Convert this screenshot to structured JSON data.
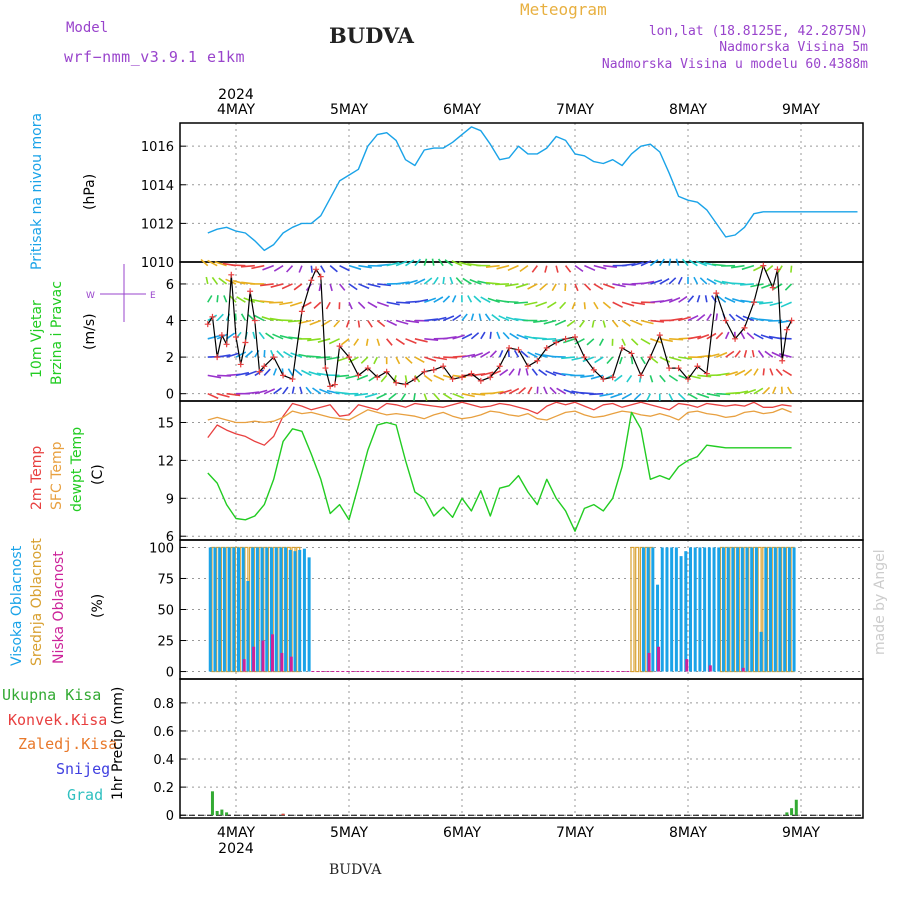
{
  "header": {
    "model_label": "Model",
    "model_name": "wrf−nmm_v3.9.1  e1km",
    "title": "BUDVA",
    "meteogram": "Meteogram",
    "lonlat": "lon,lat (18.8125E, 42.2875N)",
    "elevation": "Nadmorska Visina 5m",
    "model_elevation": "Nadmorska Visina u modelu 60.4388m",
    "footer_title": "BUDVA",
    "credit": "made by Angel"
  },
  "colors": {
    "pressure": "#1aa3e8",
    "temp": "#e84040",
    "sfc": "#e8a040",
    "dewpt": "#22cc22",
    "high": "#1aa3e8",
    "mid": "#d8a030",
    "low": "#cc2299",
    "total": "#33aa33",
    "conv": "#e84040",
    "frz": "#e8782a",
    "snow": "#4040e0",
    "hail": "#30c0c0",
    "title": "#222222",
    "purple": "#9944cc",
    "orange": "#e8b040"
  },
  "time_axis": {
    "year": "2024",
    "days": [
      "4MAY",
      "5MAY",
      "6MAY",
      "7MAY",
      "8MAY",
      "9MAY"
    ]
  },
  "panels": {
    "pressure": {
      "label": "Pritisak na nivou mora",
      "unit": "(hPa)"
    },
    "wind": {
      "label1": "10m Vjetar",
      "label2": "Brzina i Pravac",
      "unit": "(m/s)"
    },
    "temp": {
      "label1": "2m Temp",
      "label2": "SFC Temp",
      "label3": "dewpt Temp",
      "unit": "(C)"
    },
    "cloud": {
      "label1": "Visoka Oblacnost",
      "label2": "Srednja Oblacnost",
      "label3": "Niska Oblacnost",
      "unit": "(%)"
    },
    "precip": {
      "items": [
        "Ukupna Kisa",
        "Konvek.Kisa",
        "Zaledj.Kisa",
        "Snijeg",
        "Grad"
      ],
      "unit": "1hr Precip (mm)"
    }
  },
  "chart_data": [
    {
      "type": "line",
      "ylabel": "(hPa)",
      "ylim": [
        1010,
        1017.2
      ],
      "yticks": [
        1010,
        1012,
        1014,
        1016
      ],
      "x_unit": "hours since 4MAY 00",
      "series": [
        {
          "name": "Pritisak na nivou mora",
          "x": [
            -6,
            -4,
            -2,
            0,
            2,
            4,
            6,
            8,
            9,
            10,
            12,
            14,
            16,
            18,
            20,
            22,
            24,
            26,
            28,
            30,
            32,
            34,
            36,
            38,
            40,
            42,
            44,
            46,
            48,
            50,
            52,
            54,
            56,
            58,
            60,
            62,
            64,
            66,
            68,
            70,
            72,
            74,
            76,
            78,
            80,
            82,
            84,
            86,
            88,
            90,
            92,
            94,
            96,
            98,
            100,
            102,
            104,
            106,
            108,
            110,
            112,
            114,
            116,
            118,
            120,
            122,
            124,
            126,
            128,
            130,
            132
          ],
          "values": [
            1011.5,
            1011.7,
            1011.8,
            1011.6,
            1011.5,
            1011.1,
            1010.6,
            1010.9,
            1011.2,
            1011.5,
            1011.8,
            1012.0,
            1012.0,
            1012.4,
            1013.3,
            1014.2,
            1014.5,
            1014.8,
            1016.0,
            1016.6,
            1016.7,
            1016.3,
            1015.3,
            1015.0,
            1015.8,
            1015.9,
            1015.9,
            1016.2,
            1016.6,
            1017.0,
            1016.8,
            1016.1,
            1015.3,
            1015.4,
            1016.0,
            1015.6,
            1015.6,
            1015.9,
            1016.5,
            1016.3,
            1015.6,
            1015.5,
            1015.2,
            1015.1,
            1015.3,
            1015.0,
            1015.6,
            1016.0,
            1016.1,
            1015.7,
            1014.6,
            1013.4,
            1013.2,
            1013.1,
            1012.7,
            1012.0,
            1011.3,
            1011.4,
            1011.8,
            1012.5,
            1012.6,
            1012.6,
            1012.6,
            1012.6,
            1012.6,
            1012.6,
            1012.6,
            1012.6,
            1012.6,
            1012.6,
            1012.6
          ]
        }
      ]
    },
    {
      "type": "line",
      "ylabel": "(m/s)",
      "ylim": [
        -0.4,
        7.2
      ],
      "yticks": [
        0,
        2,
        4,
        6
      ],
      "x_unit": "hours since 4MAY 00",
      "series": [
        {
          "name": "10m Vjetar",
          "x": [
            -6,
            -5,
            -4,
            -3,
            -2,
            -1,
            0,
            1,
            2,
            3,
            4,
            5,
            6,
            8,
            10,
            12,
            14,
            16,
            17,
            18,
            19,
            20,
            21,
            22,
            24,
            26,
            28,
            30,
            32,
            34,
            36,
            38,
            40,
            42,
            44,
            46,
            48,
            50,
            52,
            54,
            56,
            58,
            60,
            62,
            64,
            66,
            68,
            70,
            72,
            74,
            76,
            78,
            80,
            82,
            84,
            86,
            88,
            90,
            92,
            94,
            96,
            98,
            100,
            102,
            104,
            106,
            108,
            110,
            112,
            114,
            115,
            116,
            117,
            118
          ],
          "values": [
            3.8,
            4.2,
            2.0,
            3.2,
            2.7,
            6.5,
            3.1,
            1.6,
            2.8,
            5.6,
            4.0,
            1.2,
            1.5,
            2.0,
            1.0,
            0.8,
            4.5,
            6.2,
            6.8,
            6.4,
            1.4,
            0.4,
            0.5,
            2.6,
            2.0,
            1.0,
            1.4,
            0.9,
            1.2,
            0.6,
            0.5,
            0.8,
            1.2,
            1.3,
            1.5,
            0.8,
            0.9,
            1.1,
            0.7,
            0.9,
            1.5,
            2.5,
            2.4,
            1.5,
            1.8,
            2.5,
            2.8,
            3.0,
            3.1,
            2.0,
            1.3,
            0.8,
            0.9,
            2.5,
            2.2,
            1.0,
            2.0,
            3.2,
            1.4,
            1.4,
            0.8,
            1.5,
            1.1,
            5.5,
            4.0,
            3.0,
            3.6,
            5.0,
            7.0,
            5.8,
            6.8,
            1.8,
            3.5,
            4.0
          ]
        }
      ]
    },
    {
      "type": "line",
      "ylabel": "(C)",
      "ylim": [
        5.7,
        16.7
      ],
      "yticks": [
        6,
        9,
        12,
        15
      ],
      "x_unit": "hours since 4MAY 00",
      "series": [
        {
          "name": "2m Temp",
          "x": [
            -6,
            -4,
            -2,
            0,
            2,
            4,
            6,
            8,
            10,
            12,
            14,
            16,
            18,
            20,
            22,
            24,
            26,
            28,
            30,
            32,
            34,
            36,
            38,
            40,
            42,
            44,
            46,
            48,
            50,
            52,
            54,
            56,
            58,
            60,
            62,
            64,
            66,
            68,
            70,
            72,
            74,
            76,
            78,
            80,
            82,
            84,
            86,
            88,
            90,
            92,
            94,
            96,
            98,
            100,
            102,
            104,
            106,
            108,
            110,
            112,
            114,
            116,
            118
          ],
          "values": [
            13.8,
            14.8,
            14.4,
            14.1,
            13.9,
            13.5,
            13.2,
            13.9,
            15.5,
            16.5,
            16.3,
            16.0,
            16.2,
            16.4,
            15.5,
            15.6,
            16.4,
            16.2,
            16.0,
            16.5,
            16.4,
            16.2,
            16.5,
            16.4,
            16.3,
            16.2,
            16.4,
            16.6,
            16.4,
            16.2,
            16.3,
            16.5,
            16.4,
            16.2,
            16.0,
            15.7,
            16.3,
            16.6,
            16.4,
            16.6,
            16.3,
            16.0,
            16.4,
            16.5,
            16.2,
            16.4,
            16.6,
            16.4,
            16.2,
            16.0,
            16.5,
            16.4,
            16.2,
            16.5,
            16.4,
            16.3,
            16.4,
            16.3,
            16.6,
            16.2,
            16.2,
            16.4,
            16.3
          ]
        },
        {
          "name": "SFC Temp",
          "x": [
            -6,
            -4,
            -2,
            0,
            2,
            4,
            6,
            8,
            10,
            12,
            14,
            16,
            18,
            20,
            22,
            24,
            26,
            28,
            30,
            32,
            34,
            36,
            38,
            40,
            42,
            44,
            46,
            48,
            50,
            52,
            54,
            56,
            58,
            60,
            62,
            64,
            66,
            68,
            70,
            72,
            74,
            76,
            78,
            80,
            82,
            84,
            86,
            88,
            90,
            92,
            94,
            96,
            98,
            100,
            102,
            104,
            106,
            108,
            110,
            112,
            114,
            116,
            118
          ],
          "values": [
            15.2,
            15.4,
            15.2,
            15.0,
            15.0,
            15.1,
            15.0,
            15.1,
            15.4,
            15.9,
            15.7,
            15.8,
            15.6,
            15.4,
            15.3,
            15.2,
            15.6,
            16.0,
            15.8,
            15.6,
            15.7,
            15.6,
            15.5,
            15.3,
            15.6,
            15.8,
            15.5,
            15.3,
            15.4,
            15.6,
            15.9,
            15.8,
            15.6,
            15.5,
            15.7,
            15.3,
            15.2,
            15.5,
            15.8,
            15.9,
            15.6,
            15.4,
            15.5,
            15.7,
            15.9,
            15.8,
            15.6,
            15.5,
            15.7,
            15.5,
            15.2,
            15.8,
            15.9,
            15.7,
            15.6,
            15.4,
            15.5,
            15.8,
            15.9,
            15.7,
            15.8,
            16.1,
            15.8
          ]
        },
        {
          "name": "dewpt Temp",
          "x": [
            -6,
            -4,
            -2,
            0,
            2,
            4,
            6,
            8,
            10,
            12,
            14,
            16,
            18,
            20,
            22,
            24,
            26,
            28,
            30,
            32,
            34,
            36,
            38,
            40,
            42,
            44,
            46,
            48,
            50,
            52,
            54,
            56,
            58,
            60,
            62,
            64,
            66,
            68,
            70,
            72,
            74,
            76,
            78,
            80,
            82,
            84,
            86,
            88,
            90,
            92,
            94,
            96,
            98,
            100,
            102,
            104,
            106,
            108,
            110,
            112,
            114,
            116,
            118
          ],
          "values": [
            11.0,
            10.2,
            8.5,
            7.4,
            7.3,
            7.6,
            8.5,
            10.5,
            13.5,
            14.5,
            14.3,
            12.5,
            10.5,
            7.8,
            8.5,
            7.3,
            10.0,
            12.8,
            14.8,
            15.0,
            14.8,
            12.0,
            9.5,
            9.0,
            7.6,
            8.3,
            7.5,
            9.0,
            8.0,
            9.6,
            7.6,
            9.8,
            10.0,
            10.8,
            9.5,
            8.5,
            10.5,
            9.0,
            8.0,
            6.4,
            8.2,
            8.5,
            8.0,
            9.0,
            11.5,
            15.8,
            14.5,
            10.5,
            10.8,
            10.5,
            11.5,
            12.0,
            12.3,
            13.2,
            13.1,
            13.0,
            13.0,
            13.0,
            13.0,
            13.0,
            13.0,
            13.0,
            13.0
          ]
        }
      ]
    },
    {
      "type": "bar",
      "ylabel": "(%)",
      "ylim": [
        -6,
        106
      ],
      "yticks": [
        0,
        25,
        50,
        75,
        100
      ],
      "x_unit": "hours since 4MAY 00",
      "series": [
        {
          "name": "Visoka Oblacnost",
          "x": [
            -6,
            -5,
            -4,
            -3,
            -2,
            -1,
            0,
            1,
            2,
            3,
            4,
            5,
            6,
            7,
            8,
            9,
            10,
            11,
            12,
            13,
            14,
            15,
            86,
            87,
            88,
            89,
            90,
            91,
            92,
            93,
            94,
            95,
            96,
            97,
            98,
            99,
            100,
            101,
            102,
            103,
            104,
            105,
            106,
            107,
            108,
            109,
            110,
            111,
            112,
            113,
            114,
            115,
            116,
            117,
            118
          ],
          "values": [
            100,
            100,
            100,
            100,
            100,
            100,
            100,
            100,
            73,
            100,
            100,
            100,
            100,
            100,
            100,
            100,
            100,
            98,
            97,
            98,
            99,
            92,
            100,
            100,
            100,
            70,
            100,
            100,
            100,
            100,
            93,
            97,
            100,
            100,
            100,
            100,
            100,
            100,
            100,
            100,
            100,
            100,
            100,
            100,
            100,
            100,
            100,
            32,
            100,
            100,
            100,
            100,
            100,
            100,
            100
          ]
        },
        {
          "name": "Srednja Oblacnost",
          "x": [
            -6,
            -5,
            -4,
            -3,
            -2,
            -1,
            0,
            1,
            2,
            3,
            4,
            5,
            6,
            7,
            8,
            9,
            10,
            11,
            12,
            13,
            84,
            85,
            86,
            87,
            88,
            103,
            104,
            105,
            106,
            107,
            108,
            109,
            110,
            111,
            112,
            113,
            114,
            115,
            116,
            117,
            118
          ],
          "values": [
            0,
            100,
            100,
            100,
            100,
            100,
            100,
            100,
            100,
            100,
            100,
            100,
            100,
            100,
            100,
            100,
            100,
            100,
            100,
            100,
            100,
            100,
            100,
            100,
            100,
            100,
            100,
            100,
            100,
            100,
            100,
            100,
            100,
            100,
            100,
            100,
            100,
            100,
            100,
            100,
            100
          ]
        },
        {
          "name": "Niska Oblacnost",
          "x": [
            1,
            3,
            5,
            7,
            9,
            11,
            87,
            89,
            95,
            100,
            107
          ],
          "values": [
            10,
            20,
            25,
            30,
            15,
            12,
            15,
            20,
            10,
            5,
            3
          ]
        }
      ]
    },
    {
      "type": "bar",
      "ylabel": "1hr Precip (mm)",
      "ylim": [
        -0.02,
        0.97
      ],
      "yticks": [
        0,
        0.2,
        0.4,
        0.6,
        0.8
      ],
      "x_unit": "hours since 4MAY 00",
      "series": [
        {
          "name": "Ukupna Kisa",
          "x": [
            -5,
            -4,
            -3,
            -2,
            10,
            117,
            118,
            119
          ],
          "values": [
            0.17,
            0.03,
            0.04,
            0.02,
            0.01,
            0.02,
            0.05,
            0.11
          ]
        },
        {
          "name": "Konvek.Kisa",
          "x": [
            10
          ],
          "values": [
            0.01
          ]
        }
      ]
    }
  ]
}
